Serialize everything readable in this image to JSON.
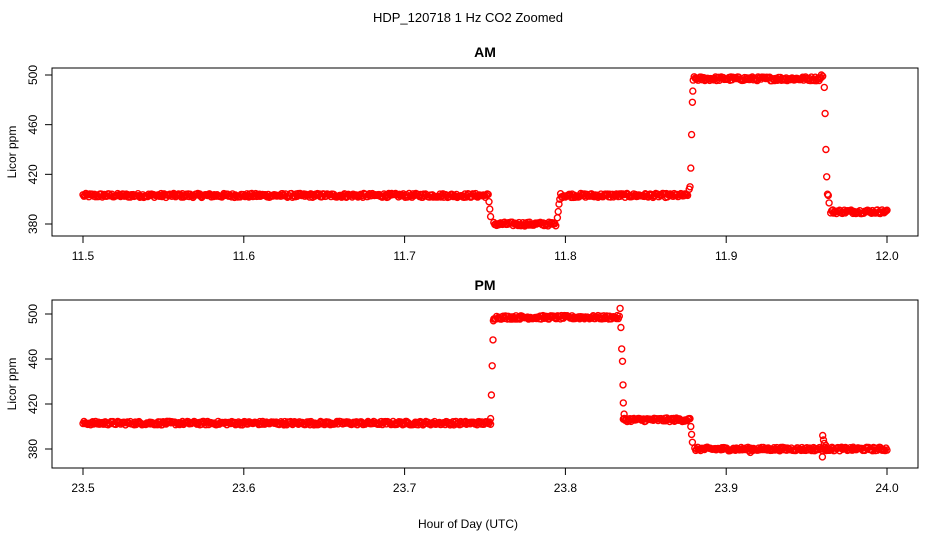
{
  "figure": {
    "title": "HDP_120718  1 Hz CO2 Zoomed",
    "xlabel": "Hour of Day (UTC)",
    "series_color": "#ff0000"
  },
  "chart_data": [
    {
      "type": "scatter",
      "title": "AM",
      "ylabel": "Licor ppm",
      "xlabel": "Hour of Day (UTC)",
      "xlim": [
        11.5,
        12.0
      ],
      "ylim": [
        371,
        510
      ],
      "x_ticks": [
        11.5,
        11.6,
        11.7,
        11.8,
        11.9,
        12.0
      ],
      "x_tick_labels": [
        "11.5",
        "11.6",
        "11.7",
        "11.8",
        "11.9",
        "12.0"
      ],
      "y_ticks": [
        380,
        420,
        460,
        500
      ],
      "y_tick_labels": [
        "380",
        "420",
        "460",
        "500"
      ],
      "grid": false,
      "marker": "open-circle",
      "segments": [
        {
          "x_start": 11.5,
          "x_end": 11.752,
          "y": 403
        },
        {
          "x_start": 11.7555,
          "x_end": 11.794,
          "y": 380
        },
        {
          "x_start": 11.797,
          "x_end": 11.876,
          "y": 403
        },
        {
          "x_start": 11.8795,
          "x_end": 11.959,
          "y": 497
        },
        {
          "x_start": 11.965,
          "x_end": 12.0,
          "y": 390
        }
      ],
      "points": [
        {
          "x": 11.7525,
          "y": 398
        },
        {
          "x": 11.753,
          "y": 392
        },
        {
          "x": 11.7535,
          "y": 386
        },
        {
          "x": 11.795,
          "y": 385
        },
        {
          "x": 11.7955,
          "y": 390
        },
        {
          "x": 11.796,
          "y": 396
        },
        {
          "x": 11.7965,
          "y": 400
        },
        {
          "x": 11.877,
          "y": 408
        },
        {
          "x": 11.8775,
          "y": 410
        },
        {
          "x": 11.878,
          "y": 425
        },
        {
          "x": 11.8785,
          "y": 452
        },
        {
          "x": 11.879,
          "y": 478
        },
        {
          "x": 11.8792,
          "y": 487
        },
        {
          "x": 11.9592,
          "y": 500
        },
        {
          "x": 11.96,
          "y": 499
        },
        {
          "x": 11.961,
          "y": 490
        },
        {
          "x": 11.9615,
          "y": 469
        },
        {
          "x": 11.962,
          "y": 440
        },
        {
          "x": 11.9625,
          "y": 418
        },
        {
          "x": 11.963,
          "y": 404
        },
        {
          "x": 11.9635,
          "y": 403
        },
        {
          "x": 11.964,
          "y": 397
        }
      ]
    },
    {
      "type": "scatter",
      "title": "PM",
      "ylabel": "Licor ppm",
      "xlabel": "Hour of Day (UTC)",
      "xlim": [
        23.5,
        24.0
      ],
      "ylim": [
        371,
        510
      ],
      "x_ticks": [
        23.5,
        23.6,
        23.7,
        23.8,
        23.9,
        24.0
      ],
      "x_tick_labels": [
        "23.5",
        "23.6",
        "23.7",
        "23.8",
        "23.9",
        "24.0"
      ],
      "y_ticks": [
        380,
        420,
        460,
        500
      ],
      "y_tick_labels": [
        "380",
        "420",
        "460",
        "500"
      ],
      "grid": false,
      "marker": "open-circle",
      "segments": [
        {
          "x_start": 23.5,
          "x_end": 23.7535,
          "y": 403
        },
        {
          "x_start": 23.7555,
          "x_end": 23.8335,
          "y": 497
        },
        {
          "x_start": 23.836,
          "x_end": 23.8775,
          "y": 406
        },
        {
          "x_start": 23.8805,
          "x_end": 24.0,
          "y": 380
        }
      ],
      "points": [
        {
          "x": 23.7535,
          "y": 407
        },
        {
          "x": 23.754,
          "y": 428
        },
        {
          "x": 23.7545,
          "y": 454
        },
        {
          "x": 23.755,
          "y": 477
        },
        {
          "x": 23.7552,
          "y": 494
        },
        {
          "x": 23.834,
          "y": 505
        },
        {
          "x": 23.8345,
          "y": 488
        },
        {
          "x": 23.835,
          "y": 469
        },
        {
          "x": 23.8355,
          "y": 458
        },
        {
          "x": 23.8358,
          "y": 437
        },
        {
          "x": 23.836,
          "y": 421
        },
        {
          "x": 23.8365,
          "y": 411
        },
        {
          "x": 23.878,
          "y": 400
        },
        {
          "x": 23.8785,
          "y": 393
        },
        {
          "x": 23.879,
          "y": 386
        },
        {
          "x": 23.96,
          "y": 392
        },
        {
          "x": 23.9598,
          "y": 373
        },
        {
          "x": 23.9605,
          "y": 388
        },
        {
          "x": 23.961,
          "y": 385
        },
        {
          "x": 23.962,
          "y": 383
        },
        {
          "x": 23.915,
          "y": 377
        }
      ]
    }
  ]
}
